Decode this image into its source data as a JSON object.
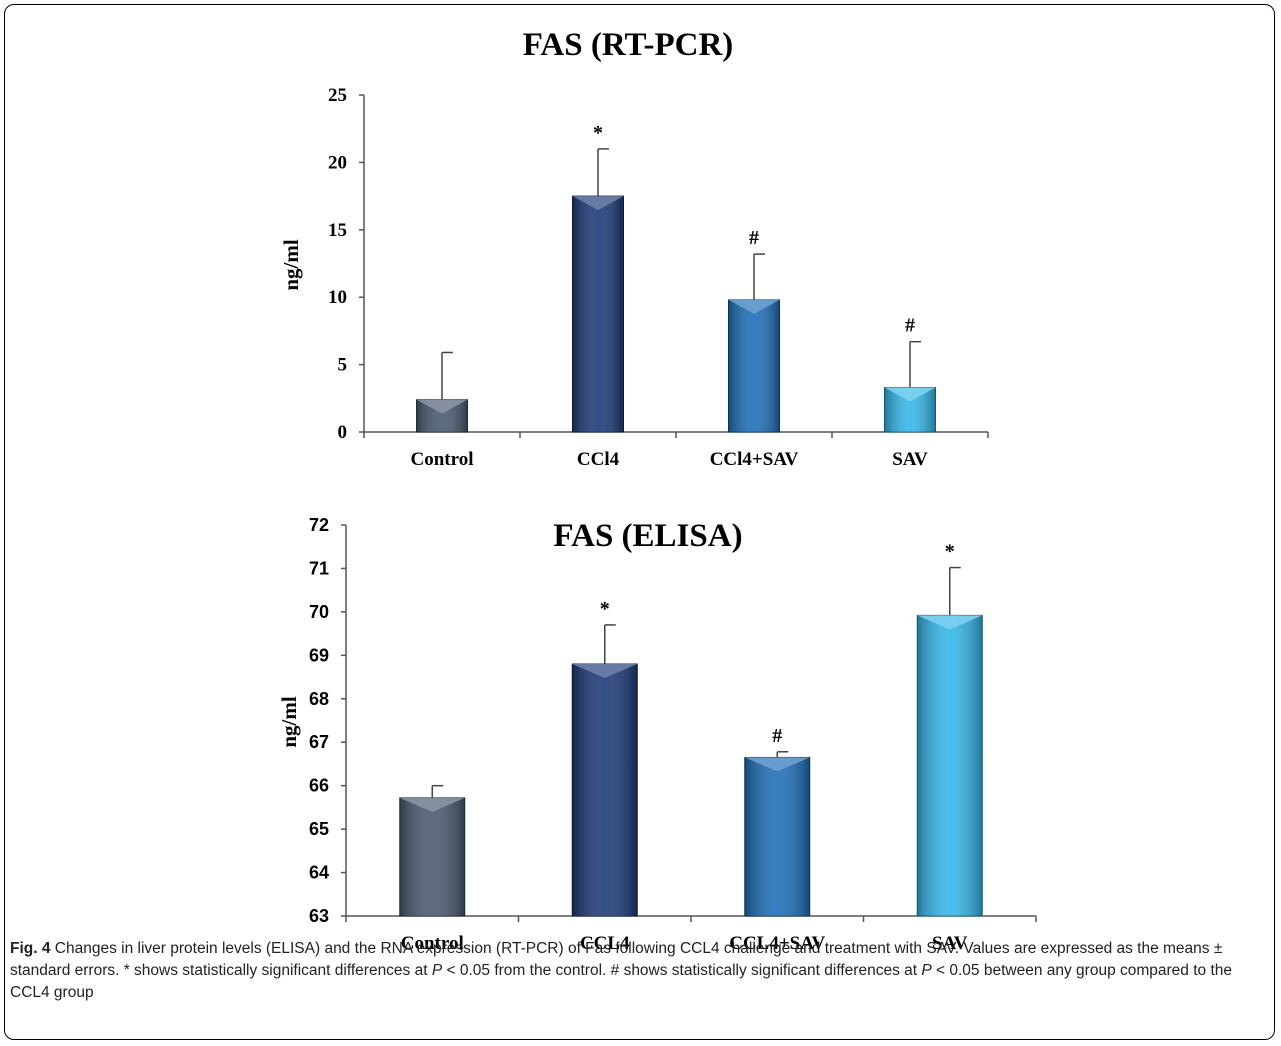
{
  "chart_data": [
    {
      "type": "bar",
      "title": "FAS (RT-PCR)",
      "ylabel": "ng/ml",
      "xlabel": "",
      "categories": [
        "Control",
        "CCl4",
        "CCl4+SAV",
        "SAV"
      ],
      "values": [
        2.4,
        17.5,
        9.8,
        3.3
      ],
      "errors": [
        3.5,
        3.5,
        3.4,
        3.4
      ],
      "annotations": [
        "",
        "*",
        "#",
        "#"
      ],
      "ylim": [
        0,
        25
      ],
      "yticks": [
        "0",
        "5",
        "10",
        "15",
        "20",
        "25"
      ],
      "colors": [
        "#4a5a70",
        "#1e3a78",
        "#1e6fb8",
        "#35b8ea"
      ],
      "grid": false,
      "legend": "none"
    },
    {
      "type": "bar",
      "title": "FAS (ELISA)",
      "ylabel": "ng/ml",
      "xlabel": "",
      "categories": [
        "Control",
        "CCL4",
        "CCL4+SAV",
        "SAV"
      ],
      "values": [
        65.72,
        68.8,
        66.65,
        69.92
      ],
      "errors": [
        0.28,
        0.9,
        0.13,
        1.1
      ],
      "annotations": [
        "",
        "*",
        "#",
        "*"
      ],
      "ylim": [
        63,
        72
      ],
      "yticks": [
        "63",
        "64",
        "65",
        "66",
        "67",
        "68",
        "69",
        "70",
        "71",
        "72"
      ],
      "colors": [
        "#4a5a70",
        "#1e3a78",
        "#1e6fb8",
        "#35b8ea"
      ],
      "grid": false,
      "legend": "none"
    }
  ],
  "caption": {
    "label": "Fig. 4",
    "text_1": " Changes in liver protein levels (ELISA) and the RNA expression (RT-PCR) of Fas following CCL4 challenge and treatment with SAV. Values are expressed as the means ± standard errors. * shows statistically significant differences at ",
    "p1": "P",
    "text_2": " < 0.05 from the control. # shows statistically significant differences at ",
    "p2": "P",
    "text_3": " < 0.05 between any group compared to the CCL4 group"
  }
}
